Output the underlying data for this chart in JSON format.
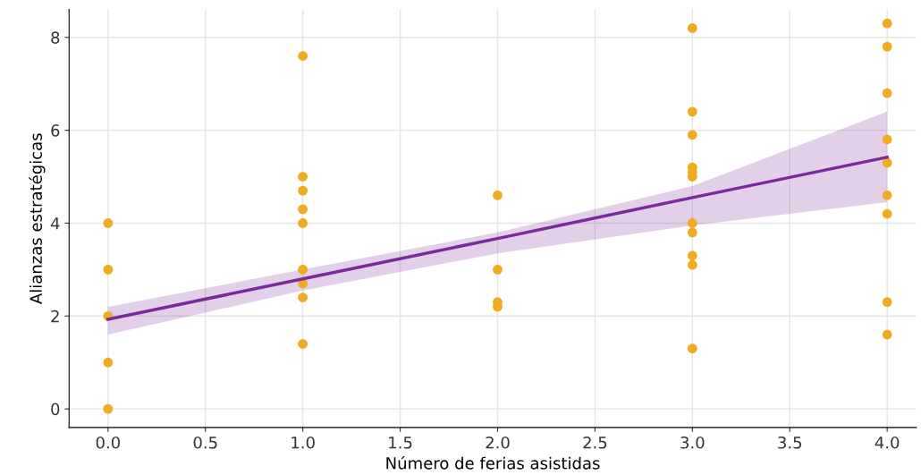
{
  "chart_data": {
    "type": "scatter",
    "xlabel": "Número de ferias asistidas",
    "ylabel": "Alianzas estratégicas",
    "xlim": [
      -0.2,
      4.15
    ],
    "ylim": [
      -0.4,
      8.6
    ],
    "xticks": [
      {
        "value": 0,
        "label": "0.0"
      },
      {
        "value": 0.5,
        "label": "0.5"
      },
      {
        "value": 1,
        "label": "1.0"
      },
      {
        "value": 1.5,
        "label": "1.5"
      },
      {
        "value": 2,
        "label": "2.0"
      },
      {
        "value": 2.5,
        "label": "2.5"
      },
      {
        "value": 3,
        "label": "3.0"
      },
      {
        "value": 3.5,
        "label": "3.5"
      },
      {
        "value": 4,
        "label": "4.0"
      }
    ],
    "yticks": [
      0,
      2,
      4,
      6,
      8
    ],
    "grid": true,
    "series": [
      {
        "marker": "circle",
        "color": "#f0ab1e",
        "x": [
          0,
          0,
          0,
          0,
          0,
          1,
          1,
          1,
          1,
          1,
          1,
          1,
          1,
          1,
          2,
          2,
          2,
          2,
          3,
          3,
          3,
          3,
          3,
          3,
          3,
          3,
          3,
          3,
          3,
          4,
          4,
          4,
          4,
          4,
          4,
          4,
          4,
          4
        ],
        "values": [
          4,
          3,
          2,
          1,
          0,
          7.6,
          5.0,
          4.7,
          4.3,
          4.0,
          3.0,
          2.7,
          2.4,
          1.4,
          4.6,
          3.0,
          2.3,
          2.2,
          8.2,
          6.4,
          5.9,
          5.2,
          5.1,
          5.0,
          4.0,
          3.8,
          3.3,
          3.1,
          1.3,
          8.3,
          7.8,
          6.8,
          5.8,
          5.3,
          4.6,
          4.2,
          2.3,
          1.6
        ]
      },
      {
        "type": "line",
        "color": "#7b2a9b",
        "x": [
          0,
          1,
          2,
          3,
          4
        ],
        "values": [
          1.93,
          2.8,
          3.67,
          4.55,
          5.42
        ],
        "lower": [
          1.6,
          2.55,
          3.35,
          3.95,
          4.45
        ],
        "upper": [
          2.2,
          3.0,
          3.8,
          4.8,
          6.4
        ]
      }
    ]
  }
}
